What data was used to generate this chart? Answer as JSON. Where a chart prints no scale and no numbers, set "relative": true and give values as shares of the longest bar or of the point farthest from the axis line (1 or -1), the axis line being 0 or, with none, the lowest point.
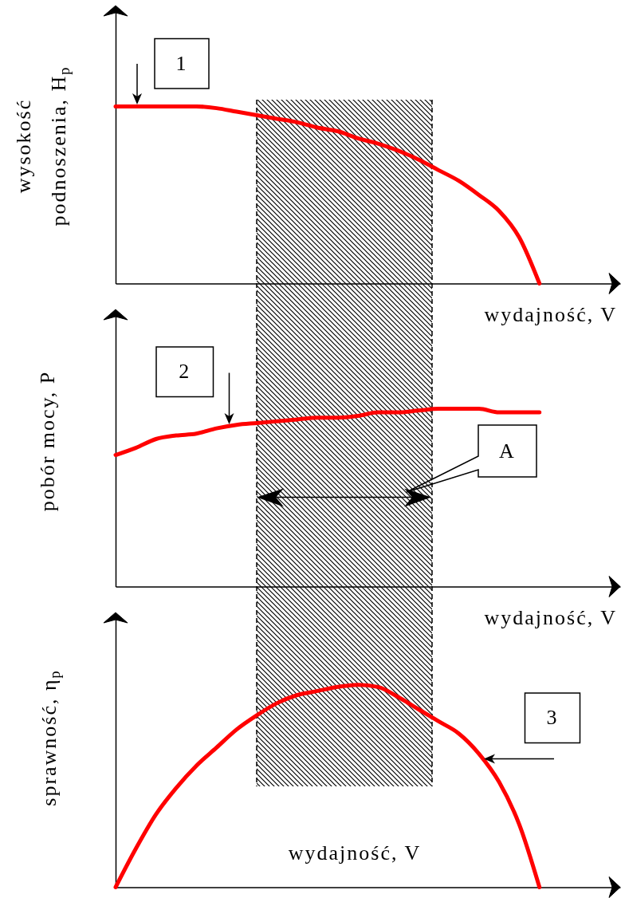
{
  "chart_data": [
    {
      "type": "line",
      "relative": true,
      "ylabel": "wysokość podnoszenia, H$_{p}$",
      "xlabel": "wydajność, V",
      "categories": [
        null,
        null,
        null,
        null,
        null,
        null,
        null,
        null,
        null,
        null,
        null,
        null,
        null,
        null,
        null,
        null,
        null,
        null,
        null,
        null,
        null,
        null,
        null,
        null,
        null,
        null
      ],
      "values": [
        1.0,
        1.0,
        1.0,
        1.0,
        1.0,
        0.99,
        0.97,
        0.95,
        0.93,
        0.91,
        0.88,
        0.86,
        0.82,
        0.79,
        0.75,
        0.7,
        0.64,
        0.58,
        0.5,
        0.41,
        0.26,
        0,
        null,
        null,
        null,
        null
      ],
      "color": "#ff0000",
      "annotations": [
        "1"
      ]
    },
    {
      "type": "line",
      "relative": true,
      "ylabel": "pobór mocy, P",
      "xlabel": "wydajność, V",
      "categories": [
        null,
        null,
        null,
        null,
        null,
        null,
        null,
        null,
        null,
        null,
        null,
        null,
        null,
        null,
        null,
        null,
        null,
        null,
        null,
        null,
        null,
        null,
        null,
        null,
        null,
        null
      ],
      "values": [
        0.74,
        0.78,
        0.83,
        0.85,
        0.86,
        0.89,
        0.91,
        0.92,
        0.93,
        0.94,
        0.95,
        0.95,
        0.96,
        0.98,
        0.98,
        0.99,
        1.0,
        1.0,
        1.0,
        0.98,
        0.98,
        0.98,
        null,
        null,
        null,
        null
      ],
      "color": "#ff0000",
      "annotations": [
        "2",
        "A"
      ]
    },
    {
      "type": "line",
      "relative": true,
      "ylabel": "sprawność, η$_{p}$",
      "xlabel": "wydajność, V",
      "categories": [
        null,
        null,
        null,
        null,
        null,
        null,
        null,
        null,
        null,
        null,
        null,
        null,
        null,
        null,
        null,
        null,
        null,
        null,
        null,
        null,
        null,
        null,
        null,
        null,
        null,
        null
      ],
      "values": [
        0,
        0.19,
        0.36,
        0.49,
        0.6,
        0.69,
        0.78,
        0.85,
        0.91,
        0.95,
        0.97,
        0.99,
        1.0,
        0.99,
        0.94,
        0.88,
        0.82,
        0.76,
        0.66,
        0.52,
        0.31,
        0,
        null,
        null,
        null,
        null
      ],
      "color": "#ff0000",
      "annotations": [
        "3"
      ]
    }
  ]
}
